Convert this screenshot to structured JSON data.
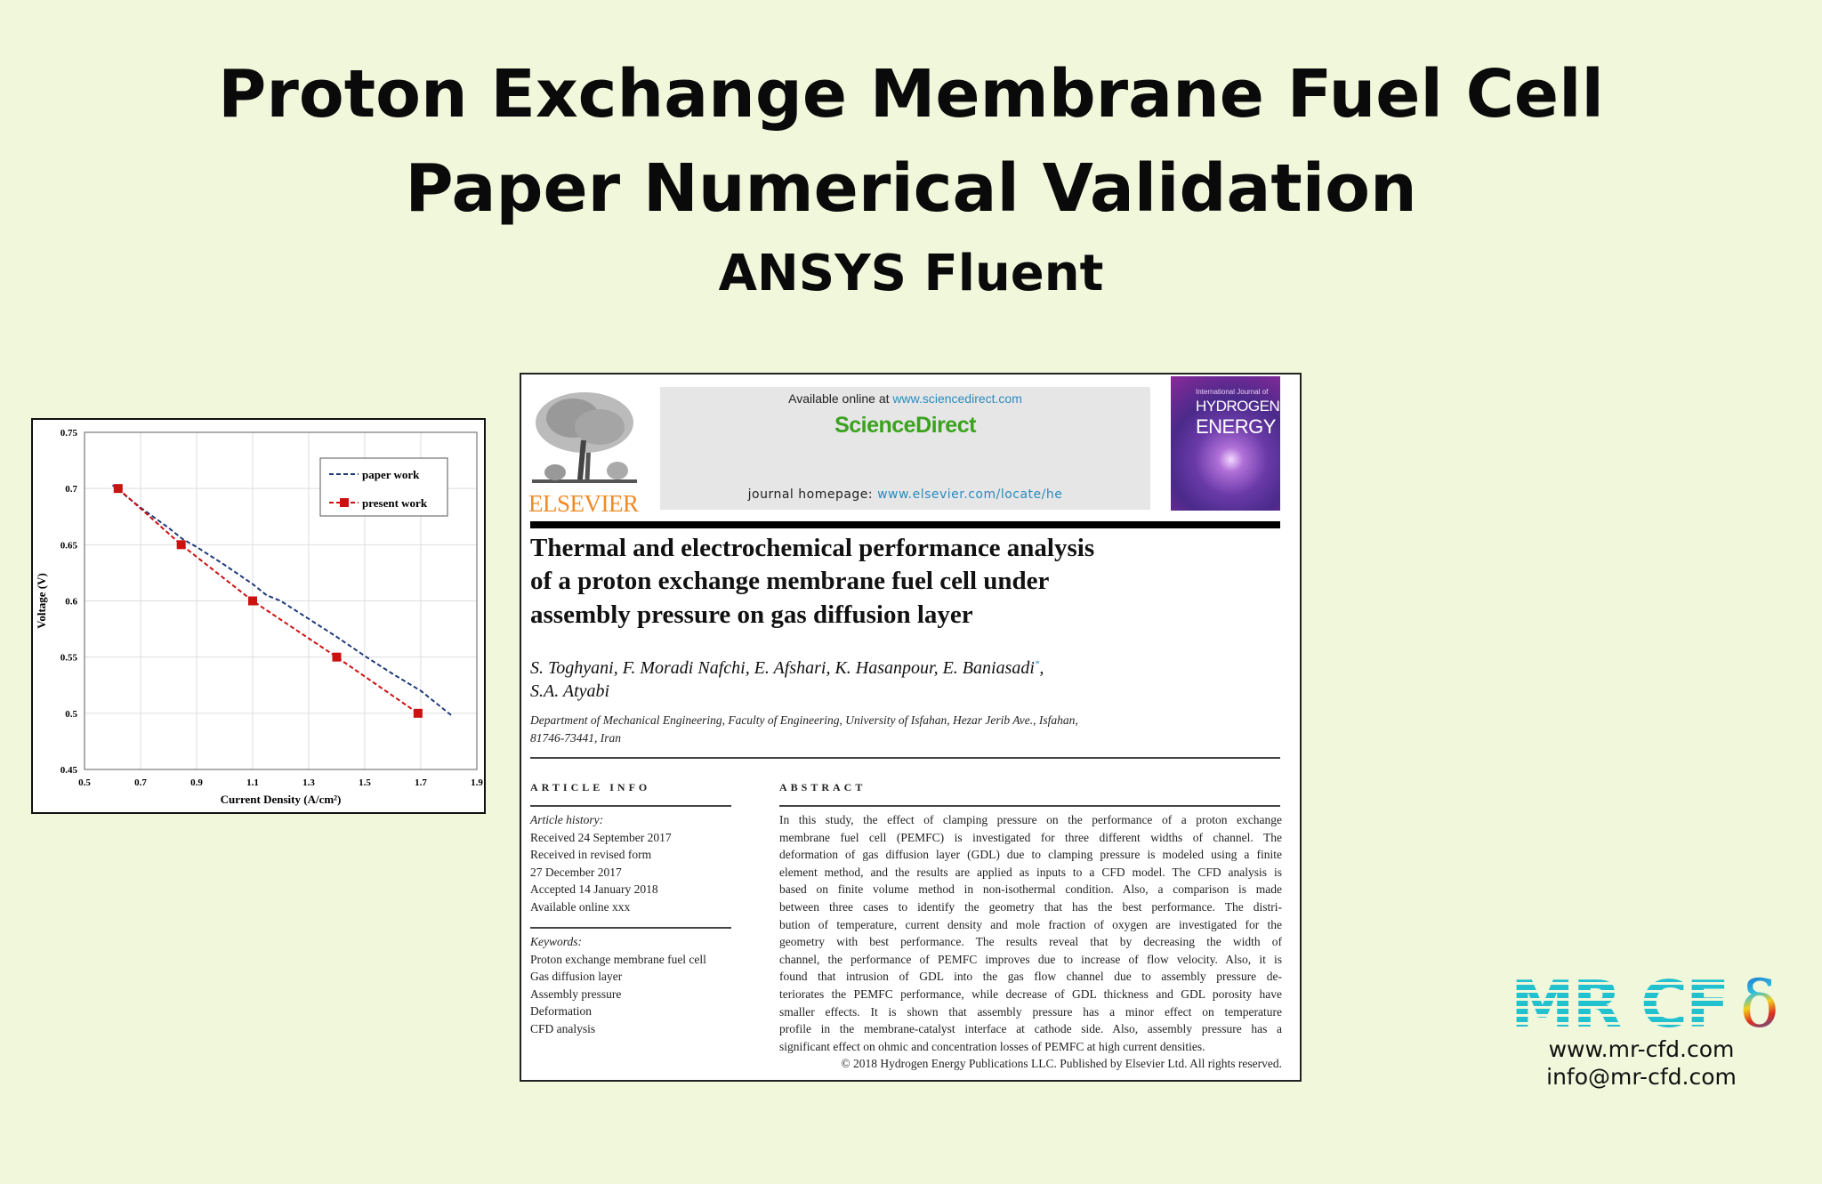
{
  "header": {
    "line1": "Proton Exchange Membrane Fuel Cell",
    "line2": "Paper Numerical Validation",
    "line3": "ANSYS Fluent"
  },
  "chart_data": {
    "type": "line",
    "xlabel": "Current Density (A/cm²)",
    "ylabel": "Voltage (V)",
    "xlim": [
      0.5,
      1.9
    ],
    "ylim": [
      0.45,
      0.75
    ],
    "xticks": [
      "0.5",
      "0.7",
      "0.9",
      "1.1",
      "1.3",
      "1.5",
      "1.7",
      "1.9"
    ],
    "yticks": [
      "0.45",
      "0.5",
      "0.55",
      "0.6",
      "0.65",
      "0.7",
      "0.75"
    ],
    "grid": true,
    "legend_position": "top-right",
    "series": [
      {
        "name": "paper work",
        "color": "#1f3a7a",
        "style": "dashed",
        "marker": "none",
        "x": [
          0.6,
          0.7,
          0.8,
          0.85,
          0.9,
          1.0,
          1.1,
          1.15,
          1.2,
          1.3,
          1.4,
          1.5,
          1.6,
          1.7,
          1.81
        ],
        "y": [
          0.703,
          0.683,
          0.665,
          0.655,
          0.648,
          0.632,
          0.615,
          0.605,
          0.6,
          0.584,
          0.568,
          0.551,
          0.535,
          0.52,
          0.498
        ]
      },
      {
        "name": "present work",
        "color": "#cc1111",
        "style": "dashed",
        "marker": "square",
        "x": [
          0.62,
          0.845,
          1.1,
          1.4,
          1.69
        ],
        "y": [
          0.7,
          0.65,
          0.6,
          0.55,
          0.5
        ]
      }
    ]
  },
  "paper": {
    "publisher": "ELSEVIER",
    "available_prefix": "Available online at ",
    "available_url": "www.sciencedirect.com",
    "sciencedirect": "ScienceDirect",
    "homepage_prefix": "journal homepage: ",
    "homepage_url": "www.elsevier.com/locate/he",
    "cover": {
      "line1": "International Journal of",
      "line2": "HYDROGEN",
      "line3": "ENERGY"
    },
    "title_lines": [
      "Thermal and electrochemical performance analysis",
      "of a proton exchange membrane fuel cell under",
      "assembly pressure on gas diffusion layer"
    ],
    "authors_line1": "S. Toghyani, F. Moradi Nafchi, E. Afshari, K. Hasanpour, E. Baniasadi",
    "authors_mark": "*",
    "authors_line2": "S.A. Atyabi",
    "affiliation_line1": "Department of Mechanical Engineering, Faculty of Engineering, University of Isfahan, Hezar Jerib Ave., Isfahan,",
    "affiliation_line2": "81746-73441, Iran",
    "article_info_heading": "ARTICLE INFO",
    "abstract_heading": "ABSTRACT",
    "history_label": "Article history:",
    "history": [
      "Received 24 September 2017",
      "Received in revised form",
      "27 December 2017",
      "Accepted 14 January 2018",
      "Available online xxx"
    ],
    "keywords_label": "Keywords:",
    "keywords": [
      "Proton exchange membrane fuel cell",
      "Gas diffusion layer",
      "Assembly pressure",
      "Deformation",
      "CFD analysis"
    ],
    "abstract_lines": [
      "In this study, the effect of clamping pressure on the performance of a proton exchange",
      "membrane fuel cell (PEMFC) is investigated for three different widths of channel. The",
      "deformation of gas diffusion layer (GDL) due to clamping pressure is modeled using a finite",
      "element method, and the results are applied as inputs to a CFD model. The CFD analysis is",
      "based on finite volume method in non-isothermal condition. Also, a comparison is made",
      "between three cases to identify the geometry that has the best performance. The distri-",
      "bution of temperature, current density and mole fraction of oxygen are investigated for the",
      "geometry with best performance. The results reveal that by decreasing the width of",
      "channel, the performance of PEMFC improves due to increase of flow velocity. Also, it is",
      "found that intrusion of GDL into the gas flow channel due to assembly pressure de-",
      "teriorates the PEMFC performance, while decrease of GDL thickness and GDL porosity have",
      "smaller effects. It is shown that assembly pressure has a minor effect on temperature",
      "profile in the membrane-catalyst interface at cathode side. Also, assembly pressure has a",
      "significant effect on ohmic and concentration losses of PEMFC at high current densities."
    ],
    "copyright": "© 2018 Hydrogen Energy Publications LLC. Published by Elsevier Ltd. All rights reserved."
  },
  "branding": {
    "logo_text": "MR CF",
    "logo_symbol": "δ",
    "website": "www.mr-cfd.com",
    "email": "info@mr-cfd.com",
    "logo_color": "#22c1cf"
  }
}
